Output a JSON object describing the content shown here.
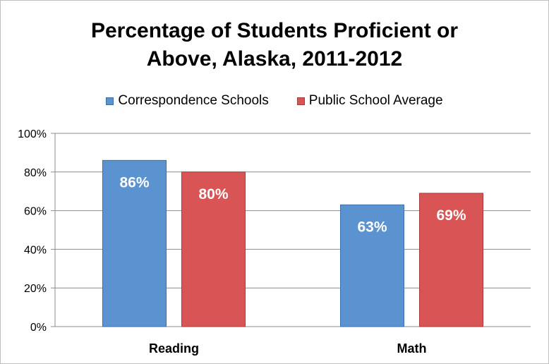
{
  "chart_data": {
    "type": "bar",
    "title_lines": [
      "Percentage of Students Proficient or",
      "Above, Alaska, 2011-2012"
    ],
    "categories": [
      "Reading",
      "Math"
    ],
    "series": [
      {
        "name": "Correspondence Schools",
        "values": [
          86,
          63
        ],
        "labels": [
          "86%",
          "63%"
        ],
        "color": "#5B93D1",
        "border": "#3B6FA8"
      },
      {
        "name": "Public School Average",
        "values": [
          80,
          69
        ],
        "labels": [
          "80%",
          "69%"
        ],
        "color": "#D95454",
        "border": "#A83A3A"
      }
    ],
    "y_ticks": [
      "0%",
      "20%",
      "40%",
      "60%",
      "80%",
      "100%"
    ],
    "ylim": [
      0,
      100
    ],
    "grid": true,
    "legend_position": "top"
  }
}
